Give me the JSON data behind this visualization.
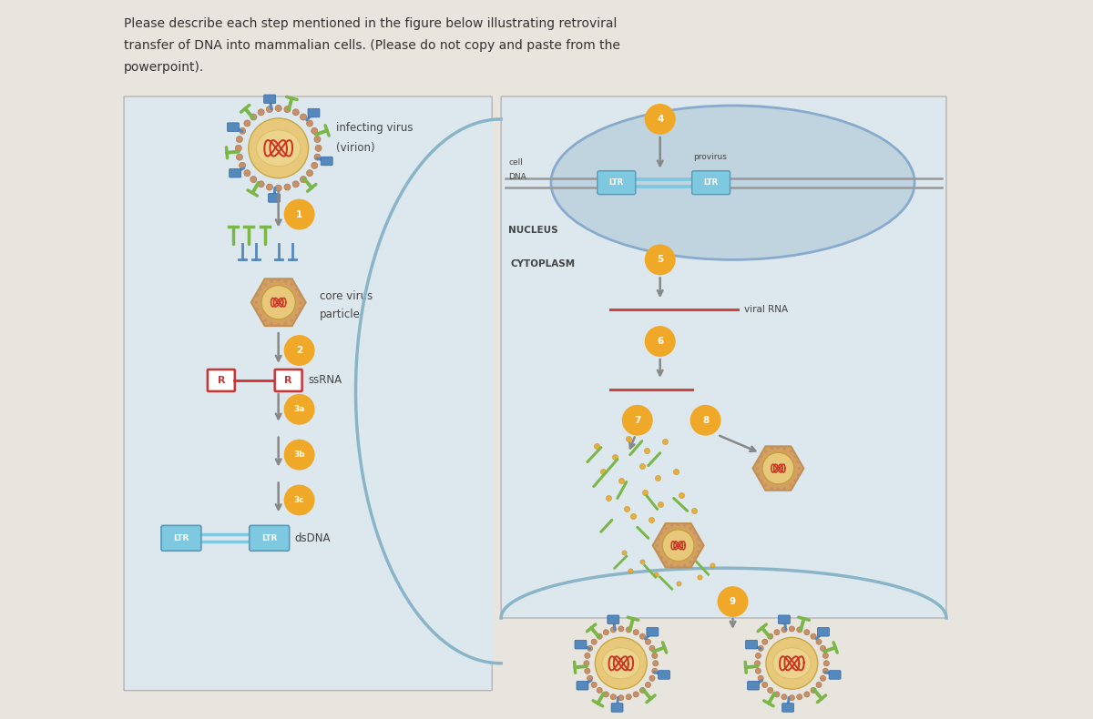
{
  "title_line1": "Please describe each step mentioned in the figure below illustrating retroviral",
  "title_line2": "transfer of DNA into mammalian cells. (Please do not copy and paste from the",
  "title_line3": "powerpoint).",
  "bg_color": "#e8e4de",
  "cell_bg": "#dce8ee",
  "nucleus_color": "#c0d4e0",
  "step_circle_color": "#f0a828",
  "arrow_color": "#888888",
  "ltr_box_color": "#7ec8e0",
  "ssrna_color": "#cc3333",
  "dsdna_color": "#7ec8e0",
  "viral_rna_color": "#cc4444",
  "green_spike_color": "#7ab648",
  "blue_spike_color": "#5588bb",
  "virus_outer_ring": "#c8956e",
  "virus_capsid_color": "#e8c87a",
  "virus_rna_color": "#cc4444",
  "membrane_color": "#8ab4c8",
  "text_color": "#444444",
  "dna_gray": "#999999"
}
